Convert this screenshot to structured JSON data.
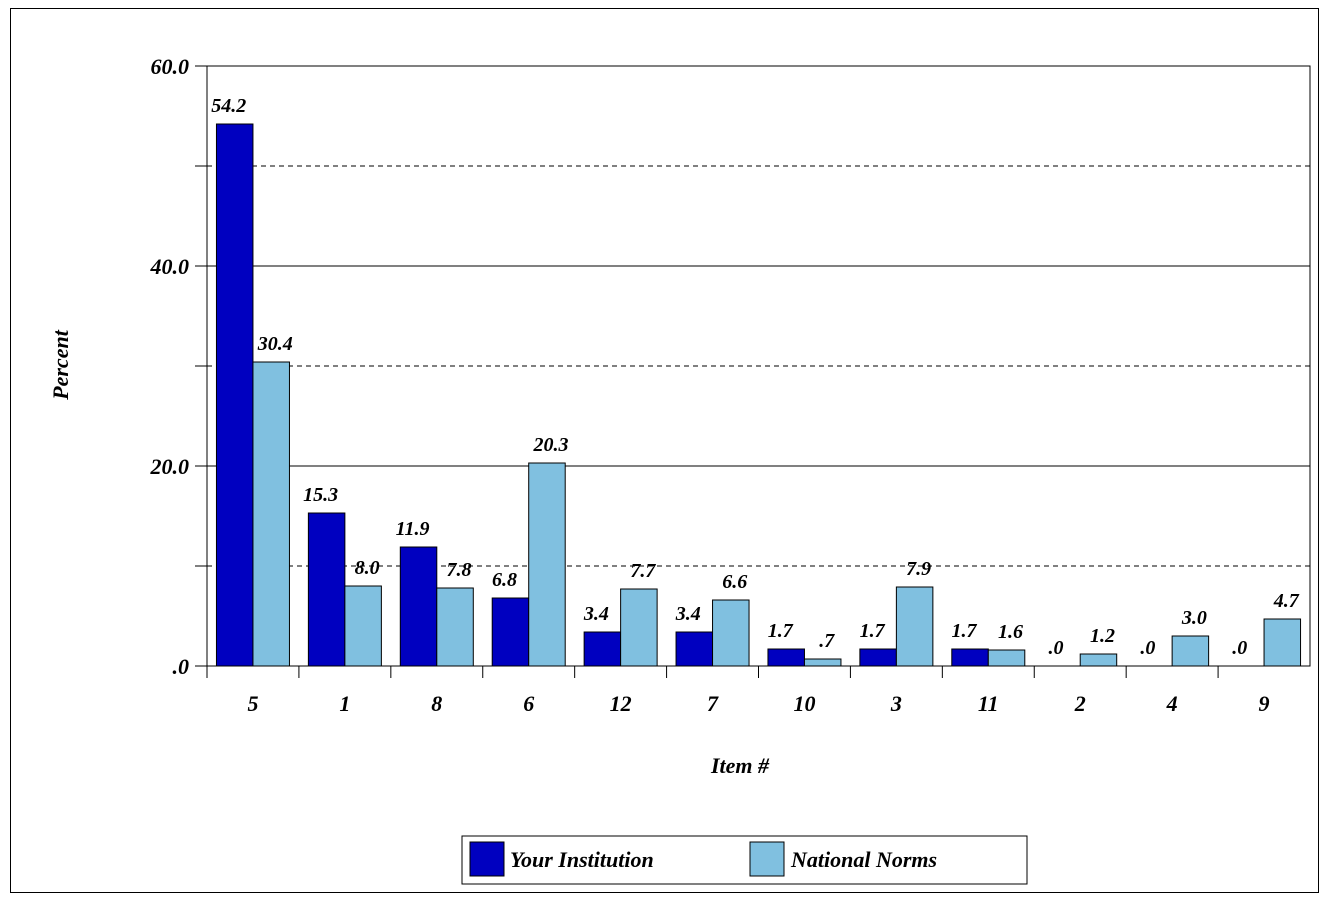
{
  "chart_data": {
    "type": "bar",
    "title": "",
    "xlabel": "Item #",
    "ylabel": "Percent",
    "ylim": [
      0,
      60
    ],
    "y_ticks": [
      ".0",
      "20.0",
      "40.0",
      "60.0"
    ],
    "y_tick_values": [
      0,
      20,
      40,
      60
    ],
    "minor_gridlines": [
      10,
      30,
      50
    ],
    "grid": true,
    "legend_position": "bottom",
    "categories": [
      "5",
      "1",
      "8",
      "6",
      "12",
      "7",
      "10",
      "3",
      "11",
      "2",
      "4",
      "9"
    ],
    "series": [
      {
        "name": "Your Institution",
        "color": "#0000c0",
        "values": [
          54.2,
          15.3,
          11.9,
          6.8,
          3.4,
          3.4,
          1.7,
          1.7,
          1.7,
          0.0,
          0.0,
          0.0
        ],
        "labels": [
          "54.2",
          "15.3",
          "11.9",
          "6.8",
          "3.4",
          "3.4",
          "1.7",
          "1.7",
          "1.7",
          ".0",
          ".0",
          ".0"
        ]
      },
      {
        "name": "National Norms",
        "color": "#80c0e0",
        "values": [
          30.4,
          8.0,
          7.8,
          20.3,
          7.7,
          6.6,
          0.7,
          7.9,
          1.6,
          1.2,
          3.0,
          4.7
        ],
        "labels": [
          "30.4",
          "8.0",
          "7.8",
          "20.3",
          "7.7",
          "6.6",
          ".7",
          "7.9",
          "1.6",
          "1.2",
          "3.0",
          "4.7"
        ]
      }
    ]
  }
}
